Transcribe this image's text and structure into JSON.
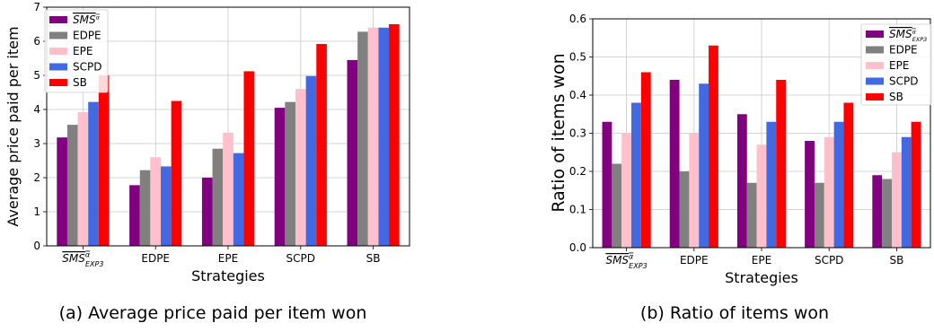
{
  "captions": [
    "(a) Average price paid per item won",
    "(b) Ratio of items won"
  ],
  "colors": {
    "series": [
      "#800080",
      "#808080",
      "#ffc0cb",
      "#4169e1",
      "#ff0000"
    ]
  },
  "chart_data": [
    {
      "type": "bar",
      "title": "",
      "xlabel": "Strategies",
      "ylabel": "Average price paid per item",
      "ylim": [
        0,
        7
      ],
      "yticks": [
        "0",
        "1",
        "2",
        "3",
        "4",
        "5",
        "6",
        "7"
      ],
      "grid": true,
      "legend_placement": "top-left",
      "categories": [
        {
          "base": "SMS",
          "sup": "α",
          "sub": "EXP3"
        },
        {
          "text": "EDPE"
        },
        {
          "text": "EPE"
        },
        {
          "text": "SCPD"
        },
        {
          "text": "SB"
        }
      ],
      "series": [
        {
          "name": {
            "base": "SMS",
            "sup": "α"
          },
          "values": [
            3.18,
            1.78,
            2.0,
            4.05,
            5.45
          ]
        },
        {
          "name": {
            "text": "EDPE"
          },
          "values": [
            3.55,
            2.22,
            2.85,
            4.22,
            6.28
          ]
        },
        {
          "name": {
            "text": "EPE"
          },
          "values": [
            3.92,
            2.6,
            3.32,
            4.6,
            6.4
          ]
        },
        {
          "name": {
            "text": "SCPD"
          },
          "values": [
            4.22,
            2.33,
            2.72,
            4.98,
            6.4
          ]
        },
        {
          "name": {
            "text": "SB"
          },
          "values": [
            5.0,
            4.25,
            5.12,
            5.92,
            6.5
          ]
        }
      ]
    },
    {
      "type": "bar",
      "title": "",
      "xlabel": "Strategies",
      "ylabel": "Ratio of items won",
      "ylim": [
        0,
        0.6
      ],
      "yticks": [
        "0.0",
        "0.1",
        "0.2",
        "0.3",
        "0.4",
        "0.5",
        "0.6"
      ],
      "grid": true,
      "legend_placement": "top-right",
      "categories": [
        {
          "base": "SMS",
          "sup": "α",
          "sub": "EXP3"
        },
        {
          "text": "EDPE"
        },
        {
          "text": "EPE"
        },
        {
          "text": "SCPD"
        },
        {
          "text": "SB"
        }
      ],
      "series": [
        {
          "name": {
            "base": "SMS",
            "sup": "α",
            "sub": "EXP3"
          },
          "values": [
            0.33,
            0.44,
            0.35,
            0.28,
            0.19
          ]
        },
        {
          "name": {
            "text": "EDPE"
          },
          "values": [
            0.22,
            0.2,
            0.17,
            0.17,
            0.18
          ]
        },
        {
          "name": {
            "text": "EPE"
          },
          "values": [
            0.3,
            0.3,
            0.27,
            0.29,
            0.25
          ]
        },
        {
          "name": {
            "text": "SCPD"
          },
          "values": [
            0.38,
            0.43,
            0.33,
            0.33,
            0.29
          ]
        },
        {
          "name": {
            "text": "SB"
          },
          "values": [
            0.46,
            0.53,
            0.44,
            0.38,
            0.33
          ]
        }
      ]
    }
  ]
}
